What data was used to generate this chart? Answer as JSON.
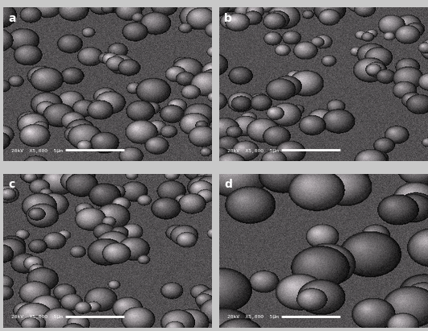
{
  "labels": [
    "a",
    "b",
    "c",
    "d"
  ],
  "scale_bar_texts": [
    "20kV  X5,000  5μm",
    "20kV  X5,000  5μm",
    "20kV  X5,000  5μm",
    "20kV  X5,000  5μm"
  ],
  "label_color": "white",
  "label_fontsize": 10,
  "scale_text_fontsize": 4.5,
  "figure_bg": "#c8c8c8",
  "seeds": [
    42,
    7,
    13,
    99
  ],
  "n_particles": [
    90,
    85,
    88,
    30
  ],
  "zoom_factors": [
    1.0,
    1.0,
    1.05,
    1.8
  ],
  "bg_mean": 0.32,
  "bg_noise": 0.04,
  "particle_size_min": 0.028,
  "particle_size_max": 0.085
}
